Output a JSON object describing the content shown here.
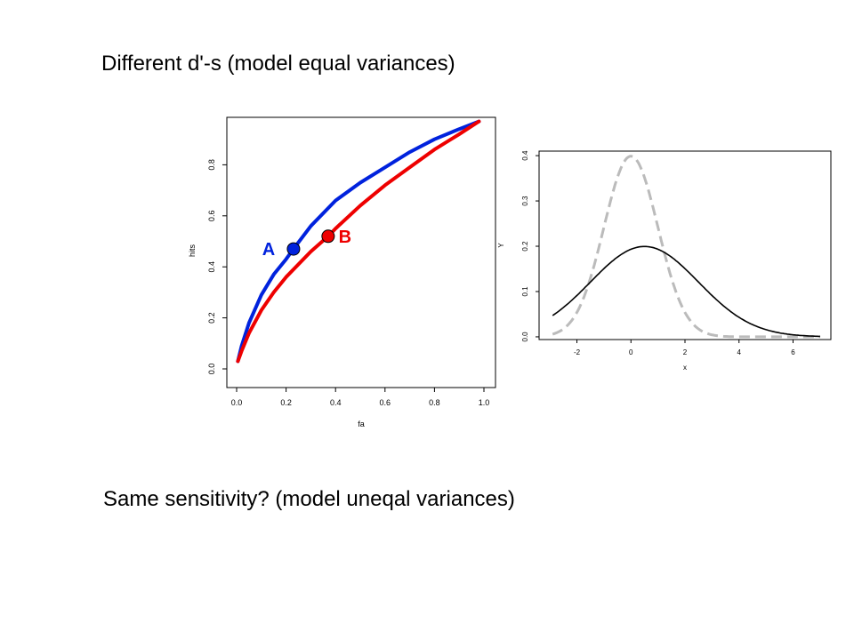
{
  "slide": {
    "heading": "Different d'-s (model equal variances)",
    "bottom_text": "Same sensitivity? (model uneqal variances)"
  },
  "colors": {
    "blue": "#0022dd",
    "red": "#ee0000",
    "gray_dashed": "#bbbbbb",
    "black": "#000000"
  },
  "chart_data": [
    {
      "type": "line",
      "title": "",
      "xlabel": "fa",
      "ylabel": "hits",
      "xlim": [
        0.0,
        1.0
      ],
      "ylim": [
        0.0,
        1.0
      ],
      "xticks": [
        "0.0",
        "0.2",
        "0.4",
        "0.6",
        "0.8",
        "1.0"
      ],
      "yticks": [
        "0.0",
        "0.2",
        "0.4",
        "0.6",
        "0.8"
      ],
      "grid": false,
      "series": [
        {
          "color": "blue",
          "x": [
            0.005,
            0.02,
            0.05,
            0.1,
            0.15,
            0.2,
            0.23,
            0.3,
            0.4,
            0.5,
            0.6,
            0.7,
            0.8,
            0.9,
            0.98
          ],
          "y": [
            0.03,
            0.09,
            0.18,
            0.29,
            0.37,
            0.43,
            0.47,
            0.56,
            0.66,
            0.73,
            0.79,
            0.85,
            0.9,
            0.94,
            0.97
          ]
        },
        {
          "color": "red",
          "x": [
            0.005,
            0.02,
            0.05,
            0.1,
            0.15,
            0.2,
            0.3,
            0.37,
            0.4,
            0.5,
            0.6,
            0.7,
            0.8,
            0.9,
            0.98
          ],
          "y": [
            0.03,
            0.07,
            0.14,
            0.23,
            0.3,
            0.36,
            0.46,
            0.52,
            0.55,
            0.64,
            0.72,
            0.79,
            0.86,
            0.92,
            0.97
          ]
        }
      ],
      "points": [
        {
          "label": "A",
          "x": 0.23,
          "y": 0.47,
          "color": "blue"
        },
        {
          "label": "B",
          "x": 0.37,
          "y": 0.52,
          "color": "red"
        }
      ]
    },
    {
      "type": "line",
      "title": "",
      "xlabel": "x",
      "ylabel": "Y",
      "xlim": [
        -3.4,
        7.4
      ],
      "ylim": [
        -0.006,
        0.41
      ],
      "xticks": [
        "-2",
        "0",
        "2",
        "4",
        "6"
      ],
      "yticks": [
        "0.0",
        "0.1",
        "0.2",
        "0.3",
        "0.4"
      ],
      "grid": false,
      "series": [
        {
          "color": "gray_dashed",
          "style": "dashed",
          "distribution": "normal",
          "mean": 0,
          "sd": 1
        },
        {
          "color": "black",
          "style": "solid",
          "distribution": "normal",
          "mean": 0.5,
          "sd": 2
        }
      ]
    }
  ]
}
